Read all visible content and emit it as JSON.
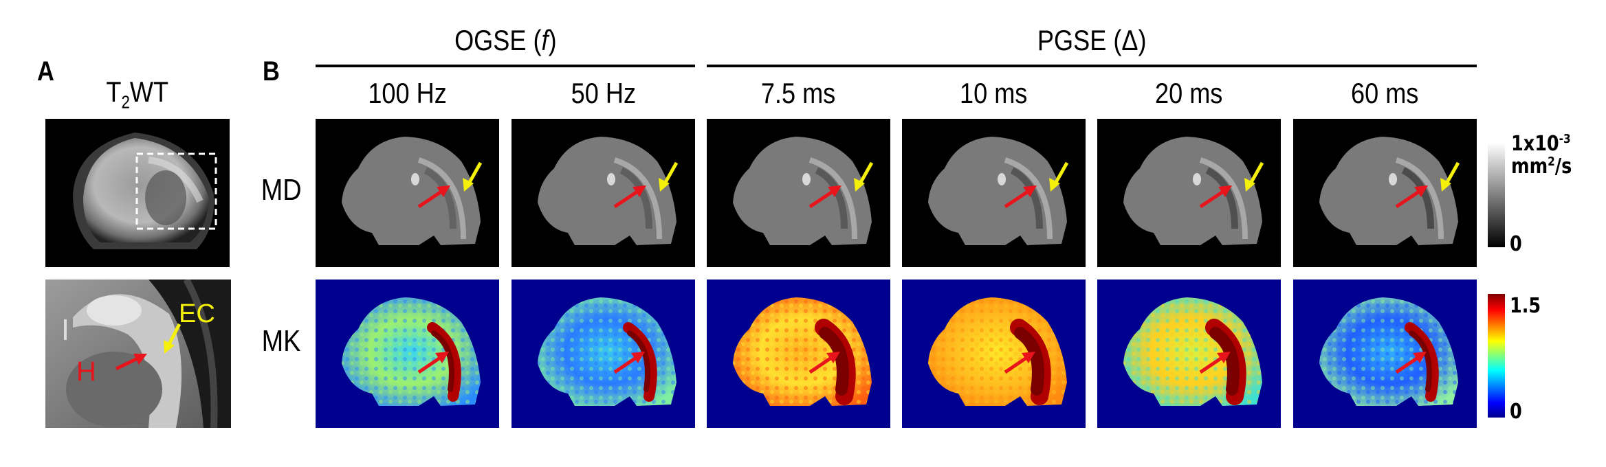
{
  "panel_a": {
    "letter": "A",
    "title_main": "T",
    "title_sub": "2",
    "title_rest": "WT",
    "annotations": {
      "hippocampus": "H",
      "external_capsule": "EC"
    }
  },
  "panel_b": {
    "letter": "B",
    "groups": [
      {
        "label_main": "OGSE (",
        "label_var": "f",
        "label_end": ")"
      },
      {
        "label_main": "PGSE (",
        "label_var": "Δ",
        "label_end": ")"
      }
    ],
    "columns": [
      {
        "label": "100 Hz",
        "group": "OGSE",
        "mk_tone": "cyan"
      },
      {
        "label": "50 Hz",
        "group": "OGSE",
        "mk_tone": "blue-cyan"
      },
      {
        "label": "7.5 ms",
        "group": "PGSE",
        "mk_tone": "orange"
      },
      {
        "label": "10 ms",
        "group": "PGSE",
        "mk_tone": "yellow"
      },
      {
        "label": "20 ms",
        "group": "PGSE",
        "mk_tone": "yellow-green"
      },
      {
        "label": "60 ms",
        "group": "PGSE",
        "mk_tone": "blue"
      }
    ],
    "rows": [
      {
        "label": "MD"
      },
      {
        "label": "MK"
      }
    ],
    "colorbars": {
      "md": {
        "max_main": "1x10",
        "max_exp": "-3",
        "unit_main": "mm",
        "unit_exp": "2",
        "unit_end": "/s",
        "min": "0",
        "colormap": "gray"
      },
      "mk": {
        "max": "1.5",
        "min": "0",
        "colormap": "jet"
      }
    }
  },
  "colors": {
    "arrow_red": "#e8141c",
    "arrow_yellow": "#f5f00a",
    "mk_background": "#00008f"
  }
}
